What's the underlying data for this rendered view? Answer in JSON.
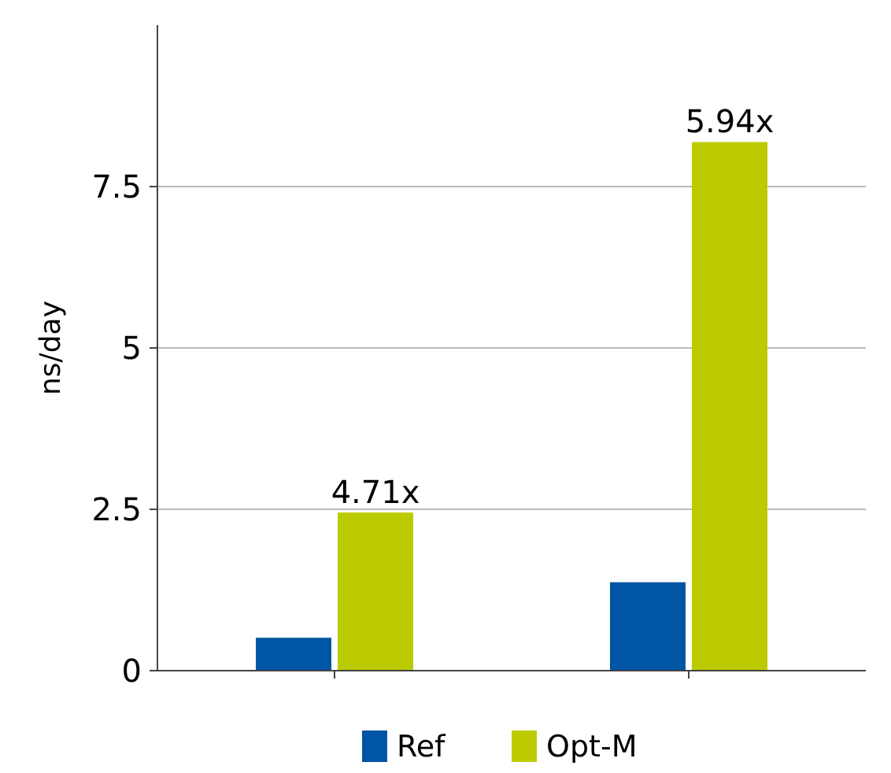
{
  "chart_data": {
    "type": "bar",
    "ylabel": "ns/day",
    "categories": [
      null,
      null
    ],
    "series": [
      {
        "name": "Ref",
        "color": "#0055a4",
        "values": [
          0.51,
          1.37
        ]
      },
      {
        "name": "Opt-M",
        "color": "#bccb00",
        "values": [
          2.45,
          8.19
        ]
      }
    ],
    "annotations": [
      {
        "text": "4.71x",
        "y": 2.45
      },
      {
        "text": "5.94x",
        "y": 8.19
      }
    ],
    "ylim": [
      0,
      10
    ],
    "yticks": [
      0,
      2.5,
      5,
      7.5
    ],
    "grid": "y",
    "legend": "bottom"
  }
}
